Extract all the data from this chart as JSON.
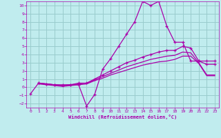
{
  "xlabel": "Windchill (Refroidissement éolien,°C)",
  "xlim": [
    -0.5,
    23.5
  ],
  "ylim": [
    -2.5,
    10.5
  ],
  "xticks": [
    0,
    1,
    2,
    3,
    4,
    5,
    6,
    7,
    8,
    9,
    10,
    11,
    12,
    13,
    14,
    15,
    16,
    17,
    18,
    19,
    20,
    21,
    22,
    23
  ],
  "yticks": [
    -2,
    -1,
    0,
    1,
    2,
    3,
    4,
    5,
    6,
    7,
    8,
    9,
    10
  ],
  "background_color": "#c0ecee",
  "line_color": "#aa00aa",
  "grid_color": "#99cccc",
  "lines": [
    {
      "x": [
        0,
        1,
        2,
        3,
        4,
        5,
        6,
        7,
        8,
        9,
        10,
        11,
        12,
        13,
        14,
        15,
        16,
        17,
        18,
        19,
        20,
        21,
        22,
        23
      ],
      "y": [
        -0.8,
        0.5,
        0.4,
        0.3,
        0.3,
        0.3,
        0.3,
        -2.3,
        -0.9,
        2.2,
        3.5,
        5.0,
        6.5,
        8.0,
        10.5,
        10.0,
        10.5,
        7.5,
        5.5,
        5.5,
        3.2,
        3.2,
        3.2,
        3.2
      ],
      "marker": "+"
    },
    {
      "x": [
        1,
        2,
        3,
        4,
        5,
        6,
        7,
        8,
        9,
        10,
        11,
        12,
        13,
        14,
        15,
        16,
        17,
        18,
        19,
        20,
        21,
        22,
        23
      ],
      "y": [
        0.5,
        0.4,
        0.3,
        0.2,
        0.3,
        0.5,
        0.5,
        1.0,
        1.5,
        2.0,
        2.5,
        3.0,
        3.3,
        3.7,
        4.0,
        4.3,
        4.5,
        4.5,
        5.0,
        4.8,
        3.2,
        2.8,
        2.8
      ],
      "marker": "+"
    },
    {
      "x": [
        1,
        2,
        3,
        4,
        5,
        6,
        7,
        8,
        9,
        10,
        11,
        12,
        13,
        14,
        15,
        16,
        17,
        18,
        19,
        20,
        21,
        22,
        23
      ],
      "y": [
        0.5,
        0.4,
        0.3,
        0.2,
        0.3,
        0.4,
        0.5,
        0.9,
        1.3,
        1.7,
        2.1,
        2.5,
        2.8,
        3.1,
        3.4,
        3.6,
        3.8,
        3.9,
        4.3,
        4.2,
        3.0,
        1.5,
        1.5
      ],
      "marker": null
    },
    {
      "x": [
        1,
        2,
        3,
        4,
        5,
        6,
        7,
        8,
        9,
        10,
        11,
        12,
        13,
        14,
        15,
        16,
        17,
        18,
        19,
        20,
        21,
        22,
        23
      ],
      "y": [
        0.4,
        0.3,
        0.2,
        0.1,
        0.2,
        0.3,
        0.4,
        0.8,
        1.1,
        1.5,
        1.8,
        2.1,
        2.4,
        2.7,
        2.9,
        3.1,
        3.2,
        3.4,
        3.8,
        3.8,
        2.9,
        1.4,
        1.4
      ],
      "marker": null
    }
  ]
}
